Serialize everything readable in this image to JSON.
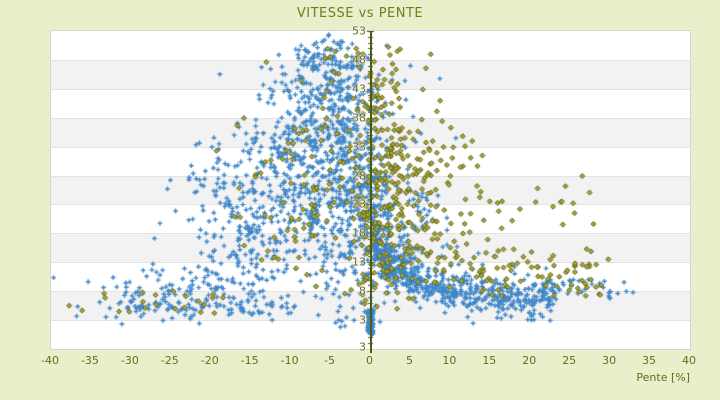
{
  "title": "VITESSE vs PENTE",
  "x_axis_title": "Pente [%]",
  "colors": {
    "page_background": "#e9efca",
    "title": "#6f7d1f",
    "tick_label": "#6a6a1f",
    "axis_line": "#4c5a10",
    "band_white": "#ffffff",
    "band_gray": "#f2f2f2",
    "band_separator": "#e3e3e3",
    "plot_border": "#d5d5d5",
    "series_blue": "#3e86c8",
    "series_olive_stroke": "#5f5f0e",
    "series_olive_fill": "#a9a93f"
  },
  "chart_data": {
    "type": "scatter",
    "title": "VITESSE vs PENTE",
    "xlabel": "Pente [%]",
    "ylabel": "",
    "xlim": [
      -40,
      40
    ],
    "ylim": [
      -2,
      53
    ],
    "x_ticks": [
      -40,
      -35,
      -30,
      -25,
      -20,
      -15,
      -10,
      -5,
      0,
      5,
      10,
      15,
      20,
      25,
      30,
      35,
      40
    ],
    "y_ticks": [
      53,
      48,
      43,
      38,
      33,
      28,
      23,
      18,
      13,
      8,
      3
    ],
    "y_axis_end_label": "3",
    "grid": {
      "alternating_bands": true,
      "band_step_units": 5,
      "minor_tick_step": 1
    },
    "legend": "none",
    "series": [
      {
        "id": "vitesse-blue",
        "marker": "plus",
        "color": "#3e86c8",
        "clusters": [
          {
            "type": "gauss",
            "n": 420,
            "cx": -6,
            "cy": 30,
            "sx": 4.5,
            "sy": 8
          },
          {
            "type": "gauss",
            "n": 260,
            "cx": -13,
            "cy": 18,
            "sx": 5.5,
            "sy": 7
          },
          {
            "type": "gauss",
            "n": 80,
            "cx": -16,
            "cy": 26,
            "sx": 4,
            "sy": 5
          },
          {
            "type": "gauss",
            "n": 130,
            "cx": -24,
            "cy": 7.5,
            "sx": 6.5,
            "sy": 2.5
          },
          {
            "type": "gauss",
            "n": 200,
            "cx": -5,
            "cy": 43,
            "sx": 3.5,
            "sy": 4.5
          },
          {
            "type": "uniform",
            "n": 25,
            "x0": -9,
            "x1": -1,
            "y0": 46,
            "y1": 52.5
          },
          {
            "type": "gauss",
            "n": 300,
            "cx": -1.5,
            "cy": 24,
            "sx": 2.6,
            "sy": 10
          },
          {
            "type": "wedge",
            "n": 620,
            "x0": 0.3,
            "x1": 23,
            "pow": 1.5,
            "a": 52,
            "b": 4.2,
            "c": 3.6,
            "noise": 1.7
          },
          {
            "type": "uniform",
            "n": 45,
            "x0": 20,
            "x1": 33,
            "y0": 6.5,
            "y1": 10
          },
          {
            "type": "uniform",
            "n": 130,
            "x0": -0.35,
            "x1": 0.35,
            "y0": 0.5,
            "y1": 4.8
          },
          {
            "type": "gauss",
            "n": 90,
            "cx": 4,
            "cy": 20,
            "sx": 3,
            "sy": 6
          },
          {
            "type": "uniform",
            "n": 60,
            "x0": -32,
            "x1": -8,
            "y0": 4,
            "y1": 6.5
          }
        ]
      },
      {
        "id": "vitesse-olive",
        "marker": "diamond",
        "color": "#5f5f0e",
        "fill": "#a9a93f",
        "clusters": [
          {
            "type": "gauss",
            "n": 190,
            "cx": 5,
            "cy": 26,
            "sx": 4,
            "sy": 8
          },
          {
            "type": "uniform",
            "n": 85,
            "x0": 8,
            "x1": 30,
            "y0": 7,
            "y1": 15
          },
          {
            "type": "gauss",
            "n": 100,
            "cx": -8,
            "cy": 26,
            "sx": 5,
            "sy": 9
          },
          {
            "type": "uniform",
            "n": 45,
            "x0": -6,
            "x1": 4,
            "y0": 38,
            "y1": 50
          },
          {
            "type": "uniform",
            "n": 22,
            "x0": -38,
            "x1": -18,
            "y0": 4,
            "y1": 8
          },
          {
            "type": "gauss",
            "n": 60,
            "cx": 2,
            "cy": 12,
            "sx": 2.5,
            "sy": 4
          },
          {
            "type": "uniform",
            "n": 25,
            "x0": 12,
            "x1": 28,
            "y0": 15,
            "y1": 28
          },
          {
            "type": "gauss",
            "n": 70,
            "cx": 1.5,
            "cy": 30,
            "sx": 1.8,
            "sy": 8
          }
        ]
      }
    ]
  }
}
